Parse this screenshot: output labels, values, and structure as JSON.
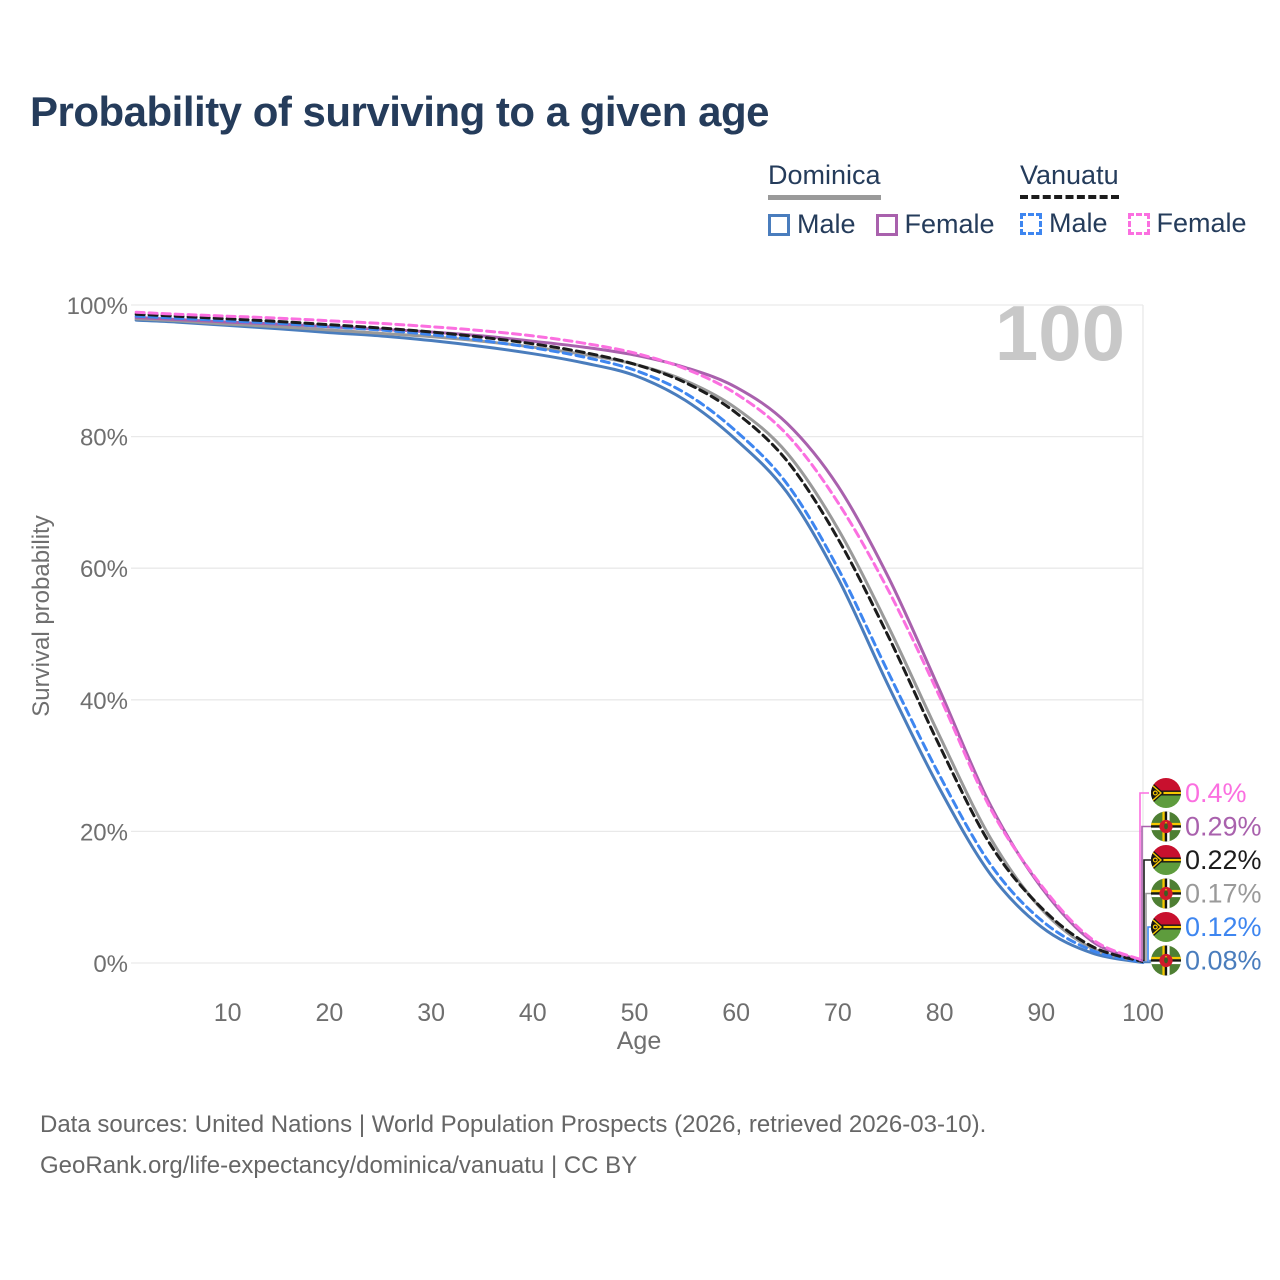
{
  "header": {
    "title": "Probability of surviving to a given age"
  },
  "watermark": {
    "text": "100"
  },
  "legend": {
    "groups": [
      {
        "title": "Dominica",
        "line_style": "solid",
        "underline_series": "dominica_total",
        "items": [
          {
            "label": "Male",
            "series": "dominica_male"
          },
          {
            "label": "Female",
            "series": "dominica_female"
          }
        ]
      },
      {
        "title": "Vanuatu",
        "line_style": "dashed",
        "underline_series": "vanuatu_total",
        "items": [
          {
            "label": "Male",
            "series": "vanuatu_male"
          },
          {
            "label": "Female",
            "series": "vanuatu_female"
          }
        ]
      }
    ]
  },
  "chart_data": {
    "type": "line",
    "title": "Probability of surviving to a given age",
    "xlabel": "Age",
    "ylabel": "Survival probability",
    "xlim": [
      0,
      100
    ],
    "ylim": [
      0,
      100
    ],
    "x_ticks": [
      10,
      20,
      30,
      40,
      50,
      60,
      70,
      80,
      90,
      100
    ],
    "y_ticks": [
      {
        "value": 0,
        "label": "0%"
      },
      {
        "value": 20,
        "label": "20%"
      },
      {
        "value": 40,
        "label": "40%"
      },
      {
        "value": 60,
        "label": "60%"
      },
      {
        "value": 80,
        "label": "80%"
      },
      {
        "value": 100,
        "label": "100%"
      }
    ],
    "grid": {
      "horizontal": [
        0,
        20,
        40,
        60,
        80,
        100
      ],
      "vertical": [
        100
      ]
    },
    "age_points": [
      1,
      5,
      10,
      15,
      20,
      25,
      30,
      35,
      40,
      45,
      50,
      55,
      60,
      65,
      70,
      75,
      80,
      85,
      90,
      95,
      100
    ],
    "series": [
      {
        "key": "dominica_male",
        "name": "Dominica Male",
        "country": "Dominica",
        "sex": "Male",
        "color": "#4a7dbd",
        "dash": false,
        "flag": "dominica",
        "end_label": "0.08%",
        "end_value": 0.08,
        "values": [
          97.7,
          97.4,
          96.9,
          96.4,
          95.8,
          95.3,
          94.6,
          93.7,
          92.6,
          91.2,
          89.3,
          85.5,
          79.5,
          71.5,
          58.5,
          42.0,
          26.5,
          13.5,
          5.5,
          1.5,
          0.08
        ]
      },
      {
        "key": "dominica_total",
        "name": "Dominica",
        "country": "Dominica",
        "sex": "Both",
        "color": "#9a9a9a",
        "dash": false,
        "flag": "dominica",
        "end_label": "0.17%",
        "end_value": 0.17,
        "values": [
          97.9,
          97.6,
          97.1,
          96.7,
          96.2,
          95.7,
          95.2,
          94.5,
          93.6,
          92.5,
          91.0,
          88.5,
          84.3,
          77.5,
          66.0,
          51.0,
          34.5,
          19.0,
          8.2,
          2.2,
          0.17
        ]
      },
      {
        "key": "dominica_female",
        "name": "Dominica Female",
        "country": "Dominica",
        "sex": "Female",
        "color": "#a961ad",
        "dash": false,
        "flag": "dominica",
        "end_label": "0.29%",
        "end_value": 0.29,
        "values": [
          98.1,
          97.8,
          97.4,
          97.1,
          96.7,
          96.3,
          95.9,
          95.3,
          94.5,
          93.6,
          92.4,
          90.5,
          87.5,
          82.0,
          72.5,
          58.5,
          41.5,
          24.0,
          11.5,
          3.3,
          0.29
        ]
      },
      {
        "key": "vanuatu_male",
        "name": "Vanuatu Male",
        "country": "Vanuatu",
        "sex": "Male",
        "color": "#3e86f0",
        "dash": true,
        "flag": "vanuatu",
        "end_label": "0.12%",
        "end_value": 0.12,
        "values": [
          98.3,
          98.0,
          97.6,
          97.2,
          96.7,
          96.2,
          95.5,
          94.6,
          93.5,
          92.1,
          90.1,
          86.6,
          80.8,
          72.8,
          60.0,
          44.0,
          28.5,
          15.0,
          6.5,
          1.9,
          0.12
        ]
      },
      {
        "key": "vanuatu_total",
        "name": "Vanuatu",
        "country": "Vanuatu",
        "sex": "Both",
        "color": "#1c1c1c",
        "dash": true,
        "flag": "vanuatu",
        "end_label": "0.22%",
        "end_value": 0.22,
        "values": [
          98.6,
          98.3,
          97.9,
          97.5,
          97.0,
          96.5,
          95.9,
          95.1,
          94.1,
          92.8,
          91.0,
          88.2,
          83.6,
          76.3,
          64.5,
          49.5,
          33.0,
          18.0,
          8.4,
          2.5,
          0.22
        ]
      },
      {
        "key": "vanuatu_female",
        "name": "Vanuatu Female",
        "country": "Vanuatu",
        "sex": "Female",
        "color": "#fb6fe0",
        "dash": true,
        "flag": "vanuatu",
        "end_label": "0.4%",
        "end_value": 0.4,
        "values": [
          98.9,
          98.6,
          98.3,
          98.0,
          97.6,
          97.2,
          96.7,
          96.1,
          95.3,
          94.2,
          92.7,
          90.3,
          86.5,
          80.3,
          70.0,
          56.5,
          40.5,
          23.5,
          11.8,
          3.6,
          0.4
        ]
      }
    ]
  },
  "footer": {
    "line1": "Data sources: United Nations | World Population Prospects (2026, retrieved 2026-03-10).",
    "line2": "GeoRank.org/life-expectancy/dominica/vanuatu | CC BY"
  },
  "colors": {
    "title_text": "#253c5b",
    "tick_text": "#6f6f6f",
    "grid_line": "#e9e9e9",
    "watermark": "#c8c8c8",
    "footer_text": "#666666"
  }
}
